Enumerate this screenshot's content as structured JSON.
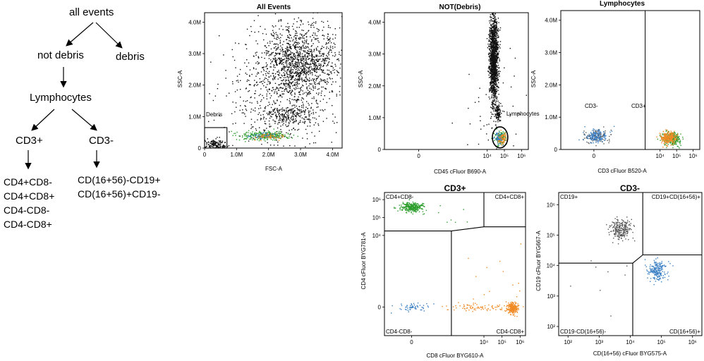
{
  "hierarchy": {
    "root": "all events",
    "not_debris": "not debris",
    "debris": "debris",
    "lymphocytes": "Lymphocytes",
    "cd3_pos": "CD3+",
    "cd3_neg": "CD3-",
    "cd3_pos_children": [
      "CD4+CD8-",
      "CD4+CD8+",
      "CD4-CD8-",
      "CD4-CD8+"
    ],
    "cd3_neg_children": [
      "CD(16+56)-CD19+",
      "CD(16+56)+CD19-"
    ]
  },
  "colors": {
    "black": "#111111",
    "green": "#2e9e2e",
    "blue": "#3b7fc4",
    "orange": "#f08a24",
    "gray": "#555555"
  },
  "chart_data": [
    {
      "id": "all-events",
      "type": "scatter",
      "title": "All Events",
      "xlabel": "FSC-A",
      "ylabel": "SSC-A",
      "xscale": "linear",
      "yscale": "linear",
      "xlim": [
        0,
        4300000
      ],
      "ylim": [
        0,
        4300000
      ],
      "xticks": [
        {
          "v": 0,
          "label": "0"
        },
        {
          "v": 1000000,
          "label": "1.0M"
        },
        {
          "v": 2000000,
          "label": "2.0M"
        },
        {
          "v": 3000000,
          "label": "3.0M"
        },
        {
          "v": 4000000,
          "label": "4.0M"
        }
      ],
      "yticks": [
        {
          "v": 0,
          "label": "0"
        },
        {
          "v": 1000000,
          "label": "1.0M"
        },
        {
          "v": 2000000,
          "label": "2.0M"
        },
        {
          "v": 3000000,
          "label": "3.0M"
        },
        {
          "v": 4000000,
          "label": "4.0M"
        }
      ],
      "gates": [
        {
          "label": "Debris",
          "shape": "rect",
          "x0": 0,
          "x1": 700000,
          "y0": 0,
          "y1": 650000
        }
      ],
      "populations": [
        {
          "name": "granulocytes",
          "color": "black",
          "n": 1300,
          "cx": 3000000,
          "cy": 2750000,
          "sx": 600000,
          "sy": 650000
        },
        {
          "name": "spread",
          "color": "black",
          "n": 450,
          "cx": 2200000,
          "cy": 1700000,
          "sx": 1000000,
          "sy": 900000
        },
        {
          "name": "monocytes",
          "color": "black",
          "n": 250,
          "cx": 2600000,
          "cy": 1050000,
          "sx": 450000,
          "sy": 200000
        },
        {
          "name": "debris",
          "color": "black",
          "n": 150,
          "cx": 300000,
          "cy": 120000,
          "sx": 200000,
          "sy": 80000
        },
        {
          "name": "lymph-green",
          "color": "green",
          "n": 260,
          "cx": 1900000,
          "cy": 400000,
          "sx": 400000,
          "sy": 70000
        },
        {
          "name": "lymph-blue",
          "color": "blue",
          "n": 50,
          "cx": 1850000,
          "cy": 400000,
          "sx": 200000,
          "sy": 50000
        },
        {
          "name": "lymph-orange",
          "color": "orange",
          "n": 50,
          "cx": 2050000,
          "cy": 380000,
          "sx": 200000,
          "sy": 50000
        }
      ]
    },
    {
      "id": "not-debris",
      "type": "scatter",
      "title": "NOT(Debris)",
      "xlabel": "CD45 cFluor B690-A",
      "ylabel": "SSC-A",
      "xscale": "biexp",
      "yscale": "linear",
      "xlim": [
        -2,
        6.4
      ],
      "ylim": [
        0,
        4300000
      ],
      "xticks": [
        {
          "v": 0,
          "label": "0"
        },
        {
          "v": 4,
          "label": "10⁴"
        },
        {
          "v": 5,
          "label": "10⁵"
        },
        {
          "v": 6,
          "label": "10⁶"
        }
      ],
      "yticks": [
        {
          "v": 0,
          "label": "0"
        },
        {
          "v": 1000000,
          "label": "1.0M"
        },
        {
          "v": 2000000,
          "label": "2.0M"
        },
        {
          "v": 3000000,
          "label": "3.0M"
        },
        {
          "v": 4000000,
          "label": "4.0M"
        }
      ],
      "gates": [
        {
          "label": "Lymphocytes",
          "shape": "ellipse",
          "cx": 4.75,
          "cy": 380000,
          "rx": 0.45,
          "ry": 330000
        }
      ],
      "populations": [
        {
          "name": "granulocytes",
          "color": "black",
          "n": 1500,
          "cx": 4.35,
          "cy": 2900000,
          "sx": 0.13,
          "sy": 700000
        },
        {
          "name": "monocytes",
          "color": "black",
          "n": 110,
          "cx": 4.6,
          "cy": 1200000,
          "sx": 0.08,
          "sy": 150000
        },
        {
          "name": "scatter",
          "color": "black",
          "n": 60,
          "cx": 4.5,
          "cy": 1000000,
          "sx": 1.2,
          "sy": 900000
        },
        {
          "name": "lymph-green",
          "color": "green",
          "n": 120,
          "cx": 4.75,
          "cy": 380000,
          "sx": 0.18,
          "sy": 110000
        },
        {
          "name": "lymph-blue",
          "color": "blue",
          "n": 70,
          "cx": 4.65,
          "cy": 380000,
          "sx": 0.13,
          "sy": 90000
        },
        {
          "name": "lymph-orange",
          "color": "orange",
          "n": 60,
          "cx": 4.85,
          "cy": 360000,
          "sx": 0.13,
          "sy": 90000
        }
      ]
    },
    {
      "id": "lymphocytes",
      "type": "scatter",
      "title": "Lymphocytes",
      "xlabel": "CD3 cFluor B520-A",
      "ylabel": "SSC-A",
      "xscale": "biexp",
      "yscale": "linear",
      "xlim": [
        -2,
        6.4
      ],
      "ylim": [
        0,
        4300000
      ],
      "xticks": [
        {
          "v": 0,
          "label": "0"
        },
        {
          "v": 4,
          "label": "10⁴"
        },
        {
          "v": 5,
          "label": "10⁵"
        },
        {
          "v": 6,
          "label": "10⁶"
        }
      ],
      "yticks": [
        {
          "v": 0,
          "label": "0"
        },
        {
          "v": 1000000,
          "label": "1.0M"
        },
        {
          "v": 2000000,
          "label": "2.0M"
        },
        {
          "v": 3000000,
          "label": "3.0M"
        },
        {
          "v": 4000000,
          "label": "4.0M"
        }
      ],
      "gates": [
        {
          "shape": "vline",
          "x": 3.1
        }
      ],
      "quadrant_labels": [
        {
          "text": "CD3-",
          "pos": "left"
        },
        {
          "text": "CD3+",
          "pos": "right"
        }
      ],
      "populations": [
        {
          "name": "cd3neg-gray",
          "color": "gray",
          "n": 100,
          "cx": 0.15,
          "cy": 420000,
          "sx": 0.38,
          "sy": 110000
        },
        {
          "name": "cd3neg-blue",
          "color": "blue",
          "n": 150,
          "cx": 0.15,
          "cy": 420000,
          "sx": 0.32,
          "sy": 100000
        },
        {
          "name": "cd3pos-green",
          "color": "green",
          "n": 250,
          "cx": 4.7,
          "cy": 360000,
          "sx": 0.28,
          "sy": 110000
        },
        {
          "name": "cd3pos-orange",
          "color": "orange",
          "n": 220,
          "cx": 4.5,
          "cy": 370000,
          "sx": 0.22,
          "sy": 95000
        }
      ]
    },
    {
      "id": "cd3pos",
      "type": "scatter",
      "title": "CD3+",
      "xlabel": "CD8 cFluor BYG610-A",
      "ylabel": "CD4 cFluor BYG781-A",
      "xscale": "biexp",
      "yscale": "biexp",
      "xlim": [
        -1.5,
        6.3
      ],
      "ylim": [
        -1.6,
        6.4
      ],
      "xticks": [
        {
          "v": 0,
          "label": "0"
        },
        {
          "v": 4,
          "label": "10⁴"
        },
        {
          "v": 5,
          "label": "10⁵"
        },
        {
          "v": 6,
          "label": "10⁶"
        }
      ],
      "yticks": [
        {
          "v": 0,
          "label": "0"
        },
        {
          "v": 4,
          "label": "10⁴"
        },
        {
          "v": 5,
          "label": "10⁵"
        },
        {
          "v": 6,
          "label": "10⁶"
        }
      ],
      "gates": [
        {
          "shape": "polyline",
          "points": [
            [
              -1.5,
              4.25
            ],
            [
              2.2,
              4.25
            ],
            [
              4.0,
              4.48
            ],
            [
              6.3,
              4.48
            ]
          ]
        },
        {
          "shape": "polyline",
          "points": [
            [
              2.2,
              -1.6
            ],
            [
              2.2,
              4.25
            ]
          ]
        },
        {
          "shape": "polyline",
          "points": [
            [
              4.0,
              4.48
            ],
            [
              4.0,
              6.4
            ]
          ]
        }
      ],
      "quadrant_labels": [
        {
          "text": "CD4+CD8-",
          "pos": "top-left"
        },
        {
          "text": "CD4+CD8+",
          "pos": "top-right"
        },
        {
          "text": "CD4-CD8-",
          "pos": "bottom-left"
        },
        {
          "text": "CD4-CD8+",
          "pos": "bottom-right"
        }
      ],
      "populations": [
        {
          "name": "cd4",
          "color": "green",
          "n": 280,
          "cx": 0.0,
          "cy": 5.6,
          "sx": 0.32,
          "sy": 0.13
        },
        {
          "name": "cd4-sparse",
          "color": "green",
          "n": 12,
          "cx": 1.2,
          "cy": 5.3,
          "sx": 1.0,
          "sy": 0.6
        },
        {
          "name": "dn",
          "color": "blue",
          "n": 55,
          "cx": 0.1,
          "cy": 0.0,
          "sx": 0.4,
          "sy": 0.14
        },
        {
          "name": "cd8",
          "color": "orange",
          "n": 230,
          "cx": 5.55,
          "cy": -0.05,
          "sx": 0.15,
          "sy": 0.16
        },
        {
          "name": "cd8-trail",
          "color": "orange",
          "n": 90,
          "cx": 3.9,
          "cy": 0.0,
          "sx": 1.0,
          "sy": 0.1
        },
        {
          "name": "cd8-sparse",
          "color": "orange",
          "n": 15,
          "cx": 4.5,
          "cy": 1.5,
          "sx": 1.0,
          "sy": 1.2
        }
      ]
    },
    {
      "id": "cd3neg",
      "type": "scatter",
      "title": "CD3-",
      "xlabel": "CD(16+56) cFluor BYG575-A",
      "ylabel": "CD19 cFluor BYG667-A",
      "xscale": "log",
      "yscale": "log",
      "xlim": [
        1.7,
        6.3
      ],
      "ylim": [
        1.7,
        6.4
      ],
      "xticks": [
        {
          "v": 2,
          "label": "10²"
        },
        {
          "v": 3,
          "label": "10³"
        },
        {
          "v": 4,
          "label": "10⁴"
        },
        {
          "v": 5,
          "label": "10⁵"
        },
        {
          "v": 6,
          "label": "10⁶"
        }
      ],
      "yticks": [
        {
          "v": 2,
          "label": "10²"
        },
        {
          "v": 3,
          "label": "10³"
        },
        {
          "v": 4,
          "label": "10⁴"
        },
        {
          "v": 5,
          "label": "10⁵"
        },
        {
          "v": 6,
          "label": "10⁶"
        }
      ],
      "gates": [
        {
          "shape": "polyline",
          "points": [
            [
              1.7,
              4.08
            ],
            [
              4.08,
              4.08
            ],
            [
              4.4,
              4.35
            ],
            [
              6.3,
              4.35
            ]
          ]
        },
        {
          "shape": "polyline",
          "points": [
            [
              4.08,
              1.7
            ],
            [
              4.08,
              4.08
            ]
          ]
        },
        {
          "shape": "polyline",
          "points": [
            [
              4.4,
              4.35
            ],
            [
              4.4,
              6.4
            ]
          ]
        }
      ],
      "quadrant_labels": [
        {
          "text": "CD19+",
          "pos": "top-left"
        },
        {
          "text": "CD19+CD(16+56)+",
          "pos": "top-right"
        },
        {
          "text": "CD19-CD(16+56)-",
          "pos": "bottom-left"
        },
        {
          "text": "CD(16+56)+",
          "pos": "bottom-right"
        }
      ],
      "populations": [
        {
          "name": "bcells",
          "color": "gray",
          "n": 230,
          "cx": 3.7,
          "cy": 5.2,
          "sx": 0.17,
          "sy": 0.17
        },
        {
          "name": "nk",
          "color": "blue",
          "n": 200,
          "cx": 4.85,
          "cy": 3.85,
          "sx": 0.16,
          "sy": 0.17
        },
        {
          "name": "sparse",
          "color": "gray",
          "n": 8,
          "cx": 3.5,
          "cy": 3.5,
          "sx": 0.8,
          "sy": 0.8
        }
      ]
    }
  ]
}
